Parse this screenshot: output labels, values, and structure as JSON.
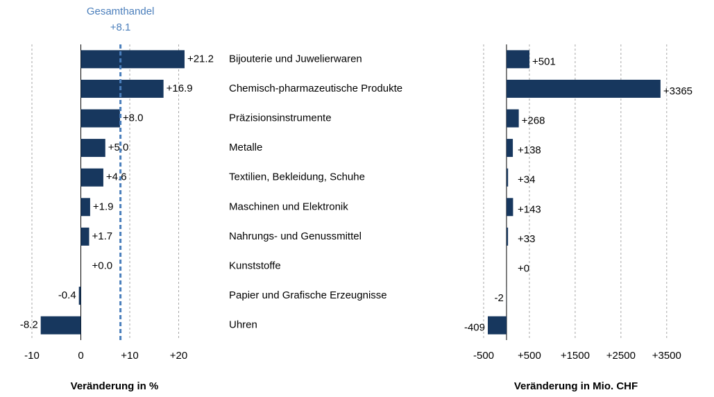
{
  "chart_data": [
    {
      "type": "barh",
      "categories": [
        "Bijouterie und Juwelierwaren",
        "Chemisch-pharmazeutische Produkte",
        "Präzisionsinstrumente",
        "Metalle",
        "Textilien, Bekleidung, Schuhe",
        "Maschinen und Elektronik",
        "Nahrungs- und Genussmittel",
        "Kunststoffe",
        "Papier und Grafische Erzeugnisse",
        "Uhren"
      ],
      "values": [
        21.2,
        16.9,
        8.0,
        5.0,
        4.6,
        1.9,
        1.7,
        0.0,
        -0.4,
        -8.2
      ],
      "value_labels": [
        "+21.2",
        "+16.9",
        "+8.0",
        "+5.0",
        "+4.6",
        "+1.9",
        "+1.7",
        "+0.0",
        "-0.4",
        "-8.2"
      ],
      "color": "#17375e",
      "xlim": [
        -10,
        30
      ],
      "xticks": [
        -10,
        0,
        {
          "value": 10,
          "label": "+10"
        },
        {
          "value": 20,
          "label": "+20"
        }
      ],
      "grid": true,
      "xlabel": "Veränderung in %",
      "reference_line": {
        "name": "Gesamthandel",
        "value": 8.1,
        "label": "+8.1",
        "color": "#4a7ebb"
      }
    },
    {
      "type": "barh",
      "values": [
        501,
        3365,
        268,
        138,
        34,
        143,
        33,
        0,
        -2,
        -409
      ],
      "value_labels": [
        "+501",
        "+3365",
        "+268",
        "+138",
        "+34",
        "+143",
        "+33",
        "+0",
        "-2",
        "-409"
      ],
      "color": "#17375e",
      "xlim": [
        -500,
        3700
      ],
      "xticks": [
        -500,
        {
          "value": 500,
          "label": "+500"
        },
        {
          "value": 1500,
          "label": "+1500"
        },
        {
          "value": 2500,
          "label": "+2500"
        },
        {
          "value": 3500,
          "label": "+3500"
        }
      ],
      "grid": true,
      "xlabel": "Veränderung in Mio. CHF"
    }
  ]
}
